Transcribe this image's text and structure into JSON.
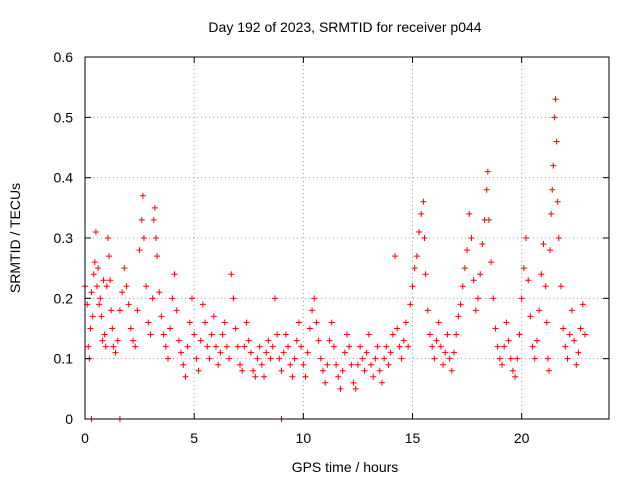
{
  "chart_data": {
    "type": "scatter",
    "title": "Day 192 of 2023, SRMTID for receiver p044",
    "xlabel": "GPS time / hours",
    "ylabel": "SRMTID / TECUs",
    "xlim": [
      0,
      24
    ],
    "ylim": [
      0,
      0.6
    ],
    "xticks": [
      0,
      5,
      10,
      15,
      20
    ],
    "yticks": [
      0,
      0.1,
      0.2,
      0.3,
      0.4,
      0.5,
      0.6
    ],
    "xtick_labels": [
      "0",
      "5",
      "10",
      "15",
      "20"
    ],
    "ytick_labels": [
      "0",
      "0.1",
      "0.2",
      "0.3",
      "0.4",
      "0.5",
      "0.6"
    ],
    "grid": true,
    "marker": "+",
    "series_color": "#ff0000",
    "series": [
      {
        "name": "SRMTID",
        "points": [
          [
            0.0,
            0.22
          ],
          [
            0.1,
            0.19
          ],
          [
            0.15,
            0.12
          ],
          [
            0.2,
            0.1
          ],
          [
            0.25,
            0.15
          ],
          [
            0.3,
            0.21
          ],
          [
            0.35,
            0.17
          ],
          [
            0.4,
            0.24
          ],
          [
            0.45,
            0.26
          ],
          [
            0.5,
            0.31
          ],
          [
            0.55,
            0.22
          ],
          [
            0.6,
            0.25
          ],
          [
            0.65,
            0.19
          ],
          [
            0.7,
            0.2
          ],
          [
            0.75,
            0.17
          ],
          [
            0.8,
            0.13
          ],
          [
            0.85,
            0.23
          ],
          [
            0.9,
            0.14
          ],
          [
            0.95,
            0.12
          ],
          [
            1.0,
            0.22
          ],
          [
            1.05,
            0.3
          ],
          [
            1.1,
            0.27
          ],
          [
            1.15,
            0.23
          ],
          [
            1.2,
            0.18
          ],
          [
            1.25,
            0.15
          ],
          [
            1.3,
            0.12
          ],
          [
            1.4,
            0.11
          ],
          [
            1.5,
            0.13
          ],
          [
            1.6,
            0.18
          ],
          [
            1.7,
            0.21
          ],
          [
            1.8,
            0.25
          ],
          [
            1.9,
            0.22
          ],
          [
            2.0,
            0.19
          ],
          [
            2.1,
            0.15
          ],
          [
            2.2,
            0.13
          ],
          [
            2.3,
            0.12
          ],
          [
            2.4,
            0.18
          ],
          [
            2.5,
            0.28
          ],
          [
            2.6,
            0.33
          ],
          [
            2.65,
            0.37
          ],
          [
            2.7,
            0.3
          ],
          [
            2.8,
            0.22
          ],
          [
            2.9,
            0.16
          ],
          [
            3.0,
            0.14
          ],
          [
            3.1,
            0.2
          ],
          [
            3.15,
            0.33
          ],
          [
            3.2,
            0.35
          ],
          [
            3.25,
            0.3
          ],
          [
            3.3,
            0.27
          ],
          [
            3.4,
            0.21
          ],
          [
            3.5,
            0.17
          ],
          [
            3.6,
            0.14
          ],
          [
            3.7,
            0.12
          ],
          [
            3.8,
            0.1
          ],
          [
            3.9,
            0.15
          ],
          [
            4.0,
            0.2
          ],
          [
            4.1,
            0.24
          ],
          [
            4.2,
            0.18
          ],
          [
            4.3,
            0.13
          ],
          [
            4.4,
            0.11
          ],
          [
            4.5,
            0.09
          ],
          [
            4.6,
            0.07
          ],
          [
            4.7,
            0.12
          ],
          [
            4.8,
            0.16
          ],
          [
            4.9,
            0.2
          ],
          [
            5.0,
            0.14
          ],
          [
            5.1,
            0.1
          ],
          [
            5.2,
            0.08
          ],
          [
            5.3,
            0.13
          ],
          [
            5.4,
            0.19
          ],
          [
            5.5,
            0.16
          ],
          [
            5.6,
            0.12
          ],
          [
            5.7,
            0.1
          ],
          [
            5.8,
            0.14
          ],
          [
            5.9,
            0.17
          ],
          [
            6.0,
            0.12
          ],
          [
            6.1,
            0.09
          ],
          [
            6.2,
            0.11
          ],
          [
            6.3,
            0.14
          ],
          [
            6.4,
            0.16
          ],
          [
            6.5,
            0.12
          ],
          [
            6.6,
            0.1
          ],
          [
            6.7,
            0.24
          ],
          [
            6.8,
            0.2
          ],
          [
            6.9,
            0.15
          ],
          [
            7.0,
            0.12
          ],
          [
            7.1,
            0.09
          ],
          [
            7.2,
            0.08
          ],
          [
            7.3,
            0.12
          ],
          [
            7.4,
            0.16
          ],
          [
            7.5,
            0.13
          ],
          [
            7.6,
            0.11
          ],
          [
            7.7,
            0.08
          ],
          [
            7.8,
            0.07
          ],
          [
            7.9,
            0.1
          ],
          [
            8.0,
            0.12
          ],
          [
            8.1,
            0.09
          ],
          [
            8.2,
            0.07
          ],
          [
            8.3,
            0.11
          ],
          [
            8.4,
            0.13
          ],
          [
            8.5,
            0.1
          ],
          [
            8.6,
            0.12
          ],
          [
            8.7,
            0.2
          ],
          [
            8.8,
            0.14
          ],
          [
            8.9,
            0.1
          ],
          [
            9.0,
            0.08
          ],
          [
            9.1,
            0.11
          ],
          [
            9.2,
            0.14
          ],
          [
            9.3,
            0.12
          ],
          [
            9.4,
            0.09
          ],
          [
            9.5,
            0.07
          ],
          [
            9.6,
            0.1
          ],
          [
            9.7,
            0.13
          ],
          [
            9.8,
            0.16
          ],
          [
            9.9,
            0.12
          ],
          [
            10.0,
            0.09
          ],
          [
            10.1,
            0.07
          ],
          [
            10.2,
            0.11
          ],
          [
            10.3,
            0.15
          ],
          [
            10.4,
            0.18
          ],
          [
            10.5,
            0.2
          ],
          [
            10.6,
            0.16
          ],
          [
            10.7,
            0.13
          ],
          [
            10.8,
            0.1
          ],
          [
            10.9,
            0.08
          ],
          [
            11.0,
            0.06
          ],
          [
            11.1,
            0.09
          ],
          [
            11.2,
            0.13
          ],
          [
            11.3,
            0.16
          ],
          [
            11.4,
            0.12
          ],
          [
            11.5,
            0.09
          ],
          [
            11.6,
            0.07
          ],
          [
            11.7,
            0.05
          ],
          [
            11.8,
            0.08
          ],
          [
            11.9,
            0.11
          ],
          [
            12.0,
            0.14
          ],
          [
            12.1,
            0.12
          ],
          [
            12.2,
            0.09
          ],
          [
            12.3,
            0.06
          ],
          [
            12.4,
            0.05
          ],
          [
            12.5,
            0.09
          ],
          [
            12.6,
            0.12
          ],
          [
            12.7,
            0.1
          ],
          [
            12.8,
            0.08
          ],
          [
            12.9,
            0.11
          ],
          [
            13.0,
            0.14
          ],
          [
            13.1,
            0.09
          ],
          [
            13.2,
            0.07
          ],
          [
            13.3,
            0.1
          ],
          [
            13.4,
            0.12
          ],
          [
            13.5,
            0.08
          ],
          [
            13.6,
            0.06
          ],
          [
            13.7,
            0.1
          ],
          [
            13.8,
            0.12
          ],
          [
            13.9,
            0.09
          ],
          [
            14.0,
            0.11
          ],
          [
            14.1,
            0.14
          ],
          [
            14.2,
            0.27
          ],
          [
            14.3,
            0.15
          ],
          [
            14.4,
            0.12
          ],
          [
            14.5,
            0.1
          ],
          [
            14.6,
            0.13
          ],
          [
            14.7,
            0.16
          ],
          [
            14.8,
            0.12
          ],
          [
            14.9,
            0.19
          ],
          [
            15.0,
            0.22
          ],
          [
            15.1,
            0.25
          ],
          [
            15.2,
            0.27
          ],
          [
            15.3,
            0.31
          ],
          [
            15.4,
            0.34
          ],
          [
            15.5,
            0.36
          ],
          [
            15.55,
            0.3
          ],
          [
            15.6,
            0.24
          ],
          [
            15.7,
            0.18
          ],
          [
            15.8,
            0.14
          ],
          [
            15.9,
            0.12
          ],
          [
            16.0,
            0.1
          ],
          [
            16.1,
            0.13
          ],
          [
            16.2,
            0.16
          ],
          [
            16.3,
            0.12
          ],
          [
            16.4,
            0.09
          ],
          [
            16.5,
            0.11
          ],
          [
            16.6,
            0.14
          ],
          [
            16.7,
            0.1
          ],
          [
            16.8,
            0.08
          ],
          [
            16.9,
            0.11
          ],
          [
            17.0,
            0.14
          ],
          [
            17.1,
            0.17
          ],
          [
            17.2,
            0.19
          ],
          [
            17.3,
            0.22
          ],
          [
            17.4,
            0.25
          ],
          [
            17.5,
            0.28
          ],
          [
            17.6,
            0.34
          ],
          [
            17.7,
            0.3
          ],
          [
            17.8,
            0.23
          ],
          [
            17.9,
            0.18
          ],
          [
            18.0,
            0.2
          ],
          [
            18.1,
            0.24
          ],
          [
            18.2,
            0.29
          ],
          [
            18.3,
            0.33
          ],
          [
            18.4,
            0.38
          ],
          [
            18.45,
            0.41
          ],
          [
            18.5,
            0.33
          ],
          [
            18.6,
            0.26
          ],
          [
            18.7,
            0.2
          ],
          [
            18.8,
            0.15
          ],
          [
            18.9,
            0.12
          ],
          [
            19.0,
            0.1
          ],
          [
            19.1,
            0.09
          ],
          [
            19.2,
            0.12
          ],
          [
            19.3,
            0.16
          ],
          [
            19.4,
            0.13
          ],
          [
            19.5,
            0.1
          ],
          [
            19.6,
            0.08
          ],
          [
            19.7,
            0.07
          ],
          [
            19.8,
            0.1
          ],
          [
            19.9,
            0.14
          ],
          [
            20.0,
            0.2
          ],
          [
            20.1,
            0.25
          ],
          [
            20.2,
            0.3
          ],
          [
            20.3,
            0.23
          ],
          [
            20.4,
            0.17
          ],
          [
            20.5,
            0.12
          ],
          [
            20.6,
            0.1
          ],
          [
            20.7,
            0.13
          ],
          [
            20.8,
            0.18
          ],
          [
            20.9,
            0.24
          ],
          [
            21.0,
            0.29
          ],
          [
            21.1,
            0.22
          ],
          [
            21.15,
            0.16
          ],
          [
            21.2,
            0.1
          ],
          [
            21.25,
            0.08
          ],
          [
            21.3,
            0.28
          ],
          [
            21.35,
            0.34
          ],
          [
            21.4,
            0.38
          ],
          [
            21.45,
            0.42
          ],
          [
            21.5,
            0.5
          ],
          [
            21.55,
            0.53
          ],
          [
            21.6,
            0.46
          ],
          [
            21.65,
            0.36
          ],
          [
            21.7,
            0.3
          ],
          [
            21.8,
            0.22
          ],
          [
            21.9,
            0.15
          ],
          [
            22.0,
            0.12
          ],
          [
            22.1,
            0.1
          ],
          [
            22.2,
            0.14
          ],
          [
            22.3,
            0.18
          ],
          [
            22.4,
            0.13
          ],
          [
            22.5,
            0.09
          ],
          [
            22.6,
            0.11
          ],
          [
            22.7,
            0.15
          ],
          [
            22.8,
            0.19
          ],
          [
            22.9,
            0.14
          ],
          [
            0.3,
            0.0
          ],
          [
            1.6,
            0.0
          ],
          [
            9.0,
            0.0
          ]
        ]
      }
    ]
  }
}
